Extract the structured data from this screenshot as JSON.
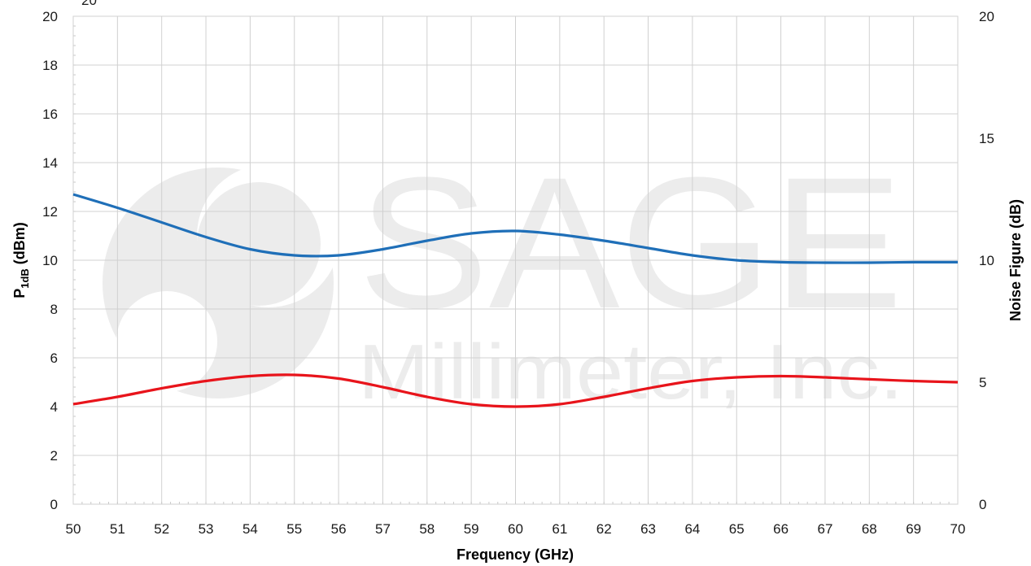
{
  "chart_data": {
    "type": "line",
    "xlabel": "Frequency (GHz)",
    "ylabel": {
      "main": "P",
      "sub": "1dB",
      "rest": " (dBm)"
    },
    "y2label": "Noise Figure (dB)",
    "xlim": [
      50,
      70
    ],
    "ylim": [
      0,
      20
    ],
    "y2lim": [
      0,
      20
    ],
    "x_ticks": [
      50,
      51,
      52,
      53,
      54,
      55,
      56,
      57,
      58,
      59,
      60,
      61,
      62,
      63,
      64,
      65,
      66,
      67,
      68,
      69,
      70
    ],
    "y_ticks": [
      0,
      2,
      4,
      6,
      8,
      10,
      12,
      14,
      16,
      18,
      20
    ],
    "y2_ticks": [
      0,
      5,
      10,
      15,
      20
    ],
    "grid": true,
    "series": [
      {
        "axis": "left",
        "color": "#1f6fb8",
        "x": [
          50,
          51,
          52,
          53,
          54,
          55,
          56,
          57,
          58,
          59,
          60,
          61,
          62,
          63,
          64,
          65,
          66,
          67,
          68,
          69,
          70
        ],
        "values": [
          12.7,
          12.15,
          11.55,
          10.95,
          10.45,
          10.2,
          10.2,
          10.45,
          10.8,
          11.1,
          11.2,
          11.05,
          10.8,
          10.5,
          10.2,
          10.0,
          9.92,
          9.9,
          9.9,
          9.92,
          9.92
        ]
      },
      {
        "axis": "left",
        "color": "#e8141b",
        "x": [
          50,
          51,
          52,
          53,
          54,
          55,
          56,
          57,
          58,
          59,
          60,
          61,
          62,
          63,
          64,
          65,
          66,
          67,
          68,
          69,
          70
        ],
        "values": [
          4.1,
          4.4,
          4.75,
          5.05,
          5.25,
          5.3,
          5.15,
          4.8,
          4.4,
          4.1,
          4.0,
          4.1,
          4.4,
          4.75,
          5.05,
          5.2,
          5.25,
          5.2,
          5.12,
          5.05,
          5.0
        ]
      }
    ],
    "partial_top_label": "20"
  },
  "watermark": {
    "line1": "SAGE",
    "line2": "Millimeter, Inc."
  }
}
